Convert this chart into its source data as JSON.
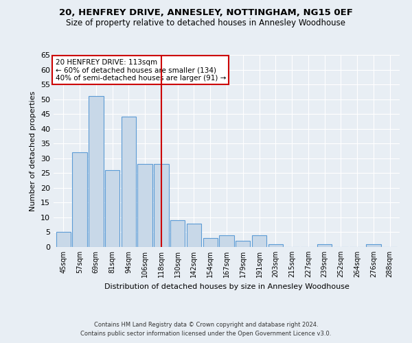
{
  "title1": "20, HENFREY DRIVE, ANNESLEY, NOTTINGHAM, NG15 0EF",
  "title2": "Size of property relative to detached houses in Annesley Woodhouse",
  "xlabel": "Distribution of detached houses by size in Annesley Woodhouse",
  "ylabel": "Number of detached properties",
  "categories": [
    "45sqm",
    "57sqm",
    "69sqm",
    "81sqm",
    "94sqm",
    "106sqm",
    "118sqm",
    "130sqm",
    "142sqm",
    "154sqm",
    "167sqm",
    "179sqm",
    "191sqm",
    "203sqm",
    "215sqm",
    "227sqm",
    "239sqm",
    "252sqm",
    "264sqm",
    "276sqm",
    "288sqm"
  ],
  "values": [
    5,
    32,
    51,
    26,
    44,
    28,
    28,
    9,
    8,
    3,
    4,
    2,
    4,
    1,
    0,
    0,
    1,
    0,
    0,
    1,
    0
  ],
  "bar_color": "#c8d8e8",
  "bar_edge_color": "#5b9bd5",
  "property_line_x": 6.0,
  "annotation_text": "20 HENFREY DRIVE: 113sqm\n← 60% of detached houses are smaller (134)\n40% of semi-detached houses are larger (91) →",
  "annotation_box_color": "#ffffff",
  "annotation_box_edge": "#cc0000",
  "vline_color": "#cc0000",
  "ylim": [
    0,
    65
  ],
  "yticks": [
    0,
    5,
    10,
    15,
    20,
    25,
    30,
    35,
    40,
    45,
    50,
    55,
    60,
    65
  ],
  "footer1": "Contains HM Land Registry data © Crown copyright and database right 2024.",
  "footer2": "Contains public sector information licensed under the Open Government Licence v3.0.",
  "background_color": "#e8eef4",
  "grid_color": "#ffffff"
}
